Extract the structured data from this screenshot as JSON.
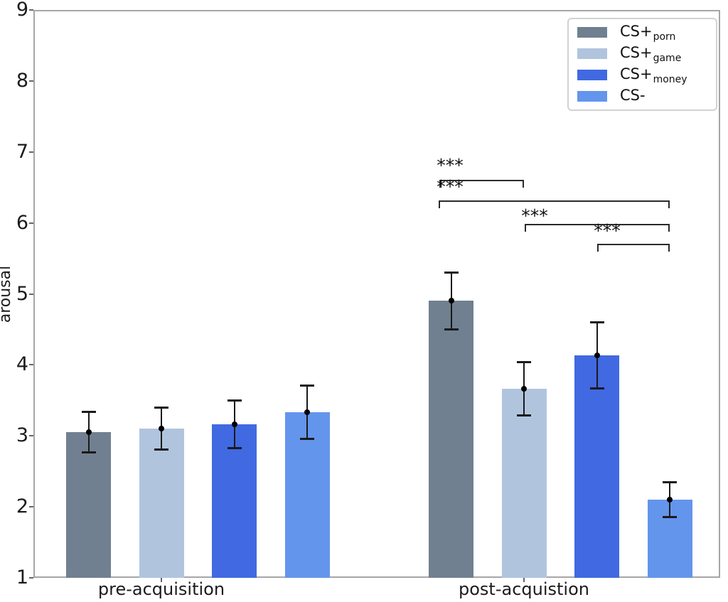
{
  "chart_data": {
    "type": "bar",
    "title": "",
    "xlabel": "",
    "ylabel": "arousal",
    "ylim": [
      1,
      9
    ],
    "yticks": [
      1,
      2,
      3,
      4,
      5,
      6,
      7,
      8,
      9
    ],
    "categories": [
      "pre-acquisition",
      "post-acquistion"
    ],
    "series": [
      {
        "name": "CS+porn",
        "label_main": "CS+",
        "label_sub": "porn",
        "color": "#708090",
        "values": [
          3.05,
          4.9
        ],
        "errors": [
          0.29,
          0.41
        ]
      },
      {
        "name": "CS+game",
        "label_main": "CS+",
        "label_sub": "game",
        "color": "#b0c4de",
        "values": [
          3.1,
          3.66
        ],
        "errors": [
          0.3,
          0.38
        ]
      },
      {
        "name": "CS+money",
        "label_main": "CS+",
        "label_sub": "money",
        "color": "#4169e1",
        "values": [
          3.16,
          4.13
        ],
        "errors": [
          0.34,
          0.47
        ]
      },
      {
        "name": "CS-",
        "label_main": "CS-",
        "label_sub": "",
        "color": "#6495ed",
        "values": [
          3.33,
          2.1
        ],
        "errors": [
          0.38,
          0.25
        ]
      }
    ],
    "error_bars": "symmetric, black, with caps and mean point marker at bar top",
    "significance_brackets": [
      {
        "category": "post-acquistion",
        "from_series": "CS+porn",
        "to_series": "CS+game",
        "label": "***"
      },
      {
        "category": "post-acquistion",
        "from_series": "CS+porn",
        "to_series": "CS-",
        "label": "***"
      },
      {
        "category": "post-acquistion",
        "from_series": "CS+game",
        "to_series": "CS-",
        "label": "***"
      },
      {
        "category": "post-acquistion",
        "from_series": "CS+money",
        "to_series": "CS-",
        "label": "***"
      }
    ],
    "legend": {
      "position": "upper right",
      "entries": [
        "CS+porn",
        "CS+game",
        "CS+money",
        "CS-"
      ]
    },
    "grid": false
  }
}
